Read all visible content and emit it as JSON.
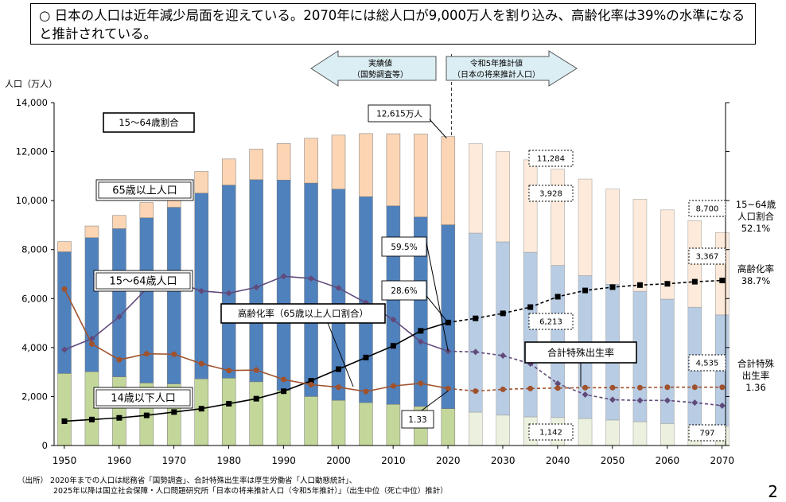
{
  "headline": "○ 日本の人口は近年減少局面を迎えている。2070年には総人口が9,000万人を割り込み、高齢化率は39%の水準になると推計されている。",
  "page_number": "2",
  "source": {
    "label": "（出所）",
    "line1": "2020年までの人口は総務省「国勢調査」、合計特殊出生率は厚生労働省「人口動態統計」、",
    "line2": "2025年以降は国立社会保障・人口問題研究所「日本の将来推計人口（令和5年推計）」（出生中位（死亡中位）推計）"
  },
  "colors": {
    "young": "#c4d79b",
    "working": "#4f81bd",
    "elderly": "#fcd5b4",
    "young_proj": "#ebf1de",
    "working_proj": "#b8cce4",
    "elderly_proj": "#fdeada",
    "share_line": "#604a7b",
    "aging_line": "#000000",
    "fertility_line": "#a0522d",
    "arrow_fill": "#dbeef3"
  },
  "chart_data": {
    "type": "bar",
    "stacked": true,
    "x": [
      1950,
      1955,
      1960,
      1965,
      1970,
      1975,
      1980,
      1985,
      1990,
      1995,
      2000,
      2005,
      2010,
      2015,
      2020,
      2025,
      2030,
      2035,
      2040,
      2045,
      2050,
      2055,
      2060,
      2065,
      2070
    ],
    "x_ticks": [
      "1950",
      "1960",
      "1970",
      "1980",
      "1990",
      "2000",
      "2010",
      "2020",
      "2030",
      "2040",
      "2050",
      "2060",
      "2070"
    ],
    "ylabel": "人口（万人）",
    "ylim": [
      0,
      14000
    ],
    "y_ticks": [
      "0",
      "2,000",
      "4,000",
      "6,000",
      "8,000",
      "10,000",
      "12,000",
      "14,000"
    ],
    "actual_until": 2020,
    "series": [
      {
        "name": "14歳以下人口",
        "values": [
          2943,
          3012,
          2807,
          2553,
          2515,
          2722,
          2751,
          2603,
          2249,
          2001,
          1847,
          1752,
          1680,
          1595,
          1503,
          1363,
          1240,
          1169,
          1142,
          1103,
          1041,
          974,
          898,
          838,
          797
        ]
      },
      {
        "name": "15～64歳人口",
        "values": [
          4966,
          5473,
          6047,
          6744,
          7212,
          7581,
          7883,
          8251,
          8590,
          8716,
          8622,
          8409,
          8103,
          7735,
          7509,
          7310,
          7076,
          6722,
          6213,
          5832,
          5540,
          5323,
          5078,
          4809,
          4535
        ]
      },
      {
        "name": "65歳以上人口",
        "values": [
          416,
          479,
          540,
          624,
          739,
          887,
          1065,
          1247,
          1489,
          1826,
          2204,
          2576,
          2948,
          3387,
          3603,
          3653,
          3696,
          3773,
          3928,
          3945,
          3888,
          3760,
          3644,
          3532,
          3367
        ]
      }
    ],
    "lines": [
      {
        "name": "15～64歳割合",
        "values": [
          59.7,
          61.2,
          64.2,
          68.0,
          69.0,
          67.7,
          67.4,
          68.2,
          69.7,
          69.4,
          68.1,
          66.1,
          63.8,
          60.8,
          59.5,
          59.4,
          58.9,
          57.8,
          55.1,
          53.6,
          52.9,
          52.8,
          52.8,
          52.5,
          52.1
        ]
      },
      {
        "name": "高齢化率（65歳以上人口割合）",
        "values": [
          4.9,
          5.3,
          5.7,
          6.3,
          7.1,
          7.9,
          9.1,
          10.3,
          12.1,
          14.6,
          17.4,
          20.2,
          23.0,
          26.6,
          28.6,
          29.6,
          30.8,
          32.3,
          34.8,
          36.3,
          37.1,
          37.6,
          37.9,
          38.4,
          38.7
        ]
      },
      {
        "name": "合計特殊出生率",
        "values": [
          3.65,
          2.37,
          2.0,
          2.14,
          2.13,
          1.91,
          1.75,
          1.76,
          1.54,
          1.42,
          1.36,
          1.26,
          1.39,
          1.45,
          1.33,
          1.27,
          1.31,
          1.33,
          1.34,
          1.35,
          1.35,
          1.35,
          1.36,
          1.36,
          1.36
        ]
      }
    ],
    "arrows": {
      "actual": [
        "実績値",
        "（国勢調査等）"
      ],
      "projected": [
        "令和5年推計値",
        "（日本の将来推計人口）"
      ]
    },
    "annotations": {
      "total_2020": "12,615万人",
      "share_2020": "59.5%",
      "aging_2020": "28.6%",
      "fertility_2020": "1.33",
      "elderly_2040": "3,928",
      "total_2040": "11,284",
      "working_2040": "6,213",
      "young_2040": "1,142",
      "total_2070": "8,700",
      "elderly_2070": "3,367",
      "working_2070": "4,535",
      "young_2070": "797"
    },
    "series_labels": {
      "share": "15～64歳割合",
      "elderly": "65歳以上人口",
      "working": "15～64歳人口",
      "aging": "高齢化率（65歳以上人口割合）",
      "young": "14歳以下人口",
      "fertility": "合計特殊出生率"
    },
    "right_labels": {
      "share": [
        "15~64歳",
        "人口割合",
        "52.1%"
      ],
      "aging": [
        "高齢化率",
        "38.7%"
      ],
      "fertility": [
        "合計特殊",
        "出生率",
        "1.36"
      ]
    }
  }
}
